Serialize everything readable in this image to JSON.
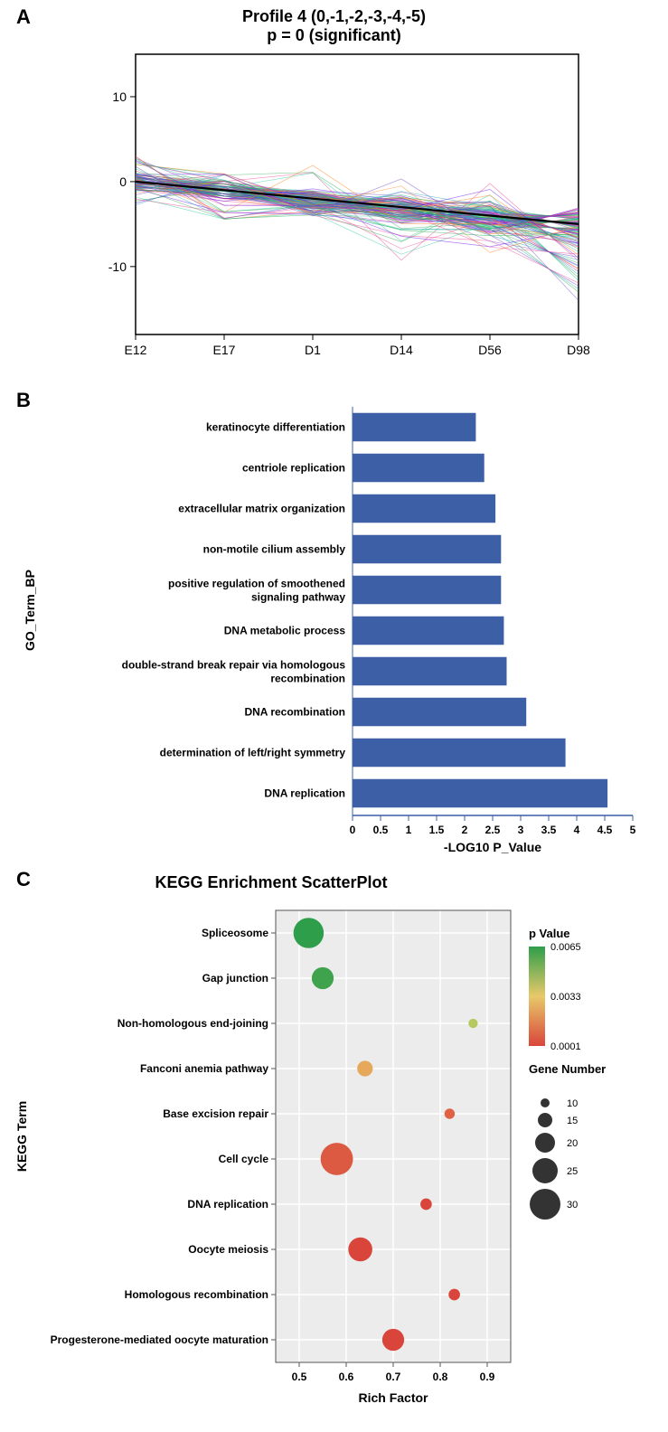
{
  "panelA": {
    "label": "A",
    "title_line1": "Profile 4 (0,-1,-2,-3,-4,-5)",
    "title_line2": "p = 0 (significant)",
    "type": "line",
    "x_categories": [
      "E12",
      "E17",
      "D1",
      "D14",
      "D56",
      "D98"
    ],
    "y_ticks": [
      -10,
      0,
      10
    ],
    "ylim": [
      -18,
      15
    ],
    "black_line": [
      0,
      -1,
      -2,
      -3,
      -4,
      -5
    ],
    "spaghetti_colors": [
      "#e83e8c",
      "#20c997",
      "#6f42c1",
      "#fd7e14",
      "#17a2b8",
      "#6610f2",
      "#28a745"
    ],
    "spaghetti_count": 120,
    "label_fontsize": 14,
    "background": "#ffffff",
    "axis_color": "#000000"
  },
  "panelB": {
    "label": "B",
    "type": "bar-horizontal",
    "y_axis_label": "GO_Term_BP",
    "x_axis_label": "-LOG10 P_Value",
    "x_ticks": [
      0,
      0.5,
      1,
      1.5,
      2,
      2.5,
      3,
      3.5,
      4,
      4.5,
      5
    ],
    "xlim": [
      0,
      5
    ],
    "bar_color": "#3c5fa6",
    "label_fontsize": 12,
    "axis_fontsize": 14,
    "bars": [
      {
        "label": "keratinocyte differentiation",
        "value": 2.2
      },
      {
        "label": "centriole replication",
        "value": 2.35
      },
      {
        "label": "extracellular matrix organization",
        "value": 2.55
      },
      {
        "label": "non-motile cilium assembly",
        "value": 2.65
      },
      {
        "label": "positive regulation of smoothened signaling pathway",
        "value": 2.65
      },
      {
        "label": "DNA metabolic process",
        "value": 2.7
      },
      {
        "label": "double-strand break repair via homologous recombination",
        "value": 2.75
      },
      {
        "label": "DNA recombination",
        "value": 3.1
      },
      {
        "label": "determination of left/right symmetry",
        "value": 3.8
      },
      {
        "label": "DNA replication",
        "value": 4.55
      }
    ]
  },
  "panelC": {
    "label": "C",
    "title": "KEGG Enrichment ScatterPlot",
    "type": "bubble",
    "y_axis_label": "KEGG Term",
    "x_axis_label": "Rich Factor",
    "x_ticks": [
      0.5,
      0.6,
      0.7,
      0.8,
      0.9
    ],
    "xlim": [
      0.45,
      0.95
    ],
    "background": "#ececec",
    "grid_color": "#ffffff",
    "label_fontsize": 12,
    "legend_pvalue_title": "p Value",
    "legend_pvalue_stops": [
      {
        "value": 0.0065,
        "color": "#2e9e4a"
      },
      {
        "value": 0.0033,
        "color": "#e8c96a"
      },
      {
        "value": 0.0001,
        "color": "#d9453a"
      }
    ],
    "legend_size_title": "Gene Number",
    "legend_sizes": [
      {
        "value": 10,
        "r": 5
      },
      {
        "value": 15,
        "r": 8
      },
      {
        "value": 20,
        "r": 11
      },
      {
        "value": 25,
        "r": 14
      },
      {
        "value": 30,
        "r": 17
      }
    ],
    "points": [
      {
        "term": "Spliceosome",
        "rich": 0.52,
        "gene_n": 30,
        "color": "#2e9e4a"
      },
      {
        "term": "Gap junction",
        "rich": 0.55,
        "gene_n": 22,
        "color": "#3fa24c"
      },
      {
        "term": "Non-homologous end-joining",
        "rich": 0.87,
        "gene_n": 10,
        "color": "#b6c95e"
      },
      {
        "term": "Fanconi anemia pathway",
        "rich": 0.64,
        "gene_n": 16,
        "color": "#e6a85a"
      },
      {
        "term": "Base excision repair",
        "rich": 0.82,
        "gene_n": 11,
        "color": "#de6243"
      },
      {
        "term": "Cell cycle",
        "rich": 0.58,
        "gene_n": 32,
        "color": "#dc5a41"
      },
      {
        "term": "DNA replication",
        "rich": 0.77,
        "gene_n": 12,
        "color": "#d9453a"
      },
      {
        "term": "Oocyte meiosis",
        "rich": 0.63,
        "gene_n": 24,
        "color": "#d9453a"
      },
      {
        "term": "Homologous recombination",
        "rich": 0.83,
        "gene_n": 12,
        "color": "#d9453a"
      },
      {
        "term": "Progesterone-mediated oocyte maturation",
        "rich": 0.7,
        "gene_n": 22,
        "color": "#d9453a"
      }
    ]
  }
}
